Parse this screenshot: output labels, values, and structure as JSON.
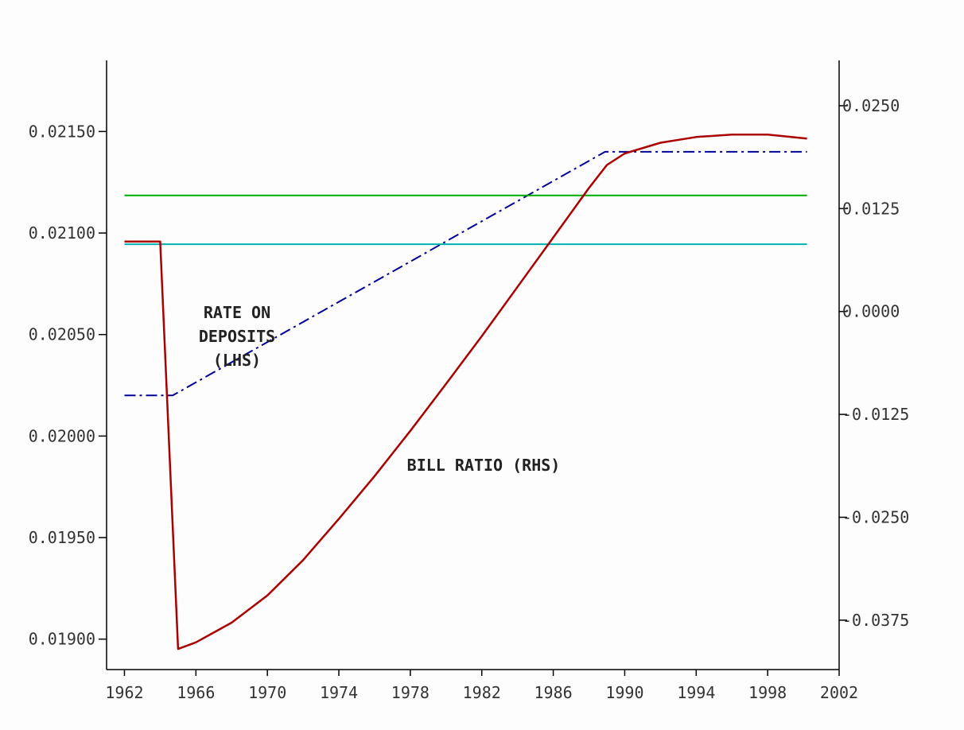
{
  "chart_data": {
    "type": "line",
    "title": "",
    "xlabel": "",
    "ylabel_left": "",
    "ylabel_right": "",
    "xlim": [
      1961,
      2002
    ],
    "x_ticks": [
      "1962",
      "1966",
      "1970",
      "1974",
      "1978",
      "1982",
      "1986",
      "1990",
      "1994",
      "1998",
      "2002"
    ],
    "ylim_left": [
      0.01885,
      0.02185
    ],
    "y_ticks_left": [
      "0.01900",
      "0.01950",
      "0.02000",
      "0.02050",
      "0.02100",
      "0.02150"
    ],
    "ylim_right": [
      -0.0435,
      0.0305
    ],
    "y_ticks_right": [
      "0.0250",
      "0.0125",
      "0.0000",
      "-0.0125",
      "-0.0250",
      "-0.0375"
    ],
    "annotations": [
      {
        "lines": [
          "RATE ON",
          "DEPOSITS",
          "(LHS)"
        ]
      },
      {
        "lines": [
          "BILL RATIO (RHS)"
        ]
      }
    ],
    "series": [
      {
        "axis": "left",
        "color": "#000099",
        "style": "dashdot",
        "points": [
          [
            1962.0,
            0.0202
          ],
          [
            1964.7,
            0.0202
          ],
          [
            1988.9,
            0.0214
          ],
          [
            2000.2,
            0.0214
          ]
        ]
      },
      {
        "axis": "left",
        "color": "#00aa00",
        "style": "solid",
        "points": [
          [
            1962.0,
            0.021185
          ],
          [
            2000.2,
            0.021185
          ]
        ]
      },
      {
        "axis": "left",
        "color": "#00b0b0",
        "style": "solid",
        "points": [
          [
            1962.0,
            0.020945
          ],
          [
            2000.2,
            0.020945
          ]
        ]
      },
      {
        "axis": "right",
        "color": "#aa0000",
        "style": "solid",
        "points": [
          [
            1962.0,
            0.0085
          ],
          [
            1964.0,
            0.0085
          ],
          [
            1965.0,
            -0.041
          ],
          [
            1966.0,
            -0.0402
          ],
          [
            1968.0,
            -0.0378
          ],
          [
            1970.0,
            -0.0345
          ],
          [
            1972.0,
            -0.0302
          ],
          [
            1974.0,
            -0.0252
          ],
          [
            1976.0,
            -0.02
          ],
          [
            1978.0,
            -0.0145
          ],
          [
            1980.0,
            -0.0088
          ],
          [
            1982.0,
            -0.003
          ],
          [
            1984.0,
            0.003
          ],
          [
            1986.0,
            0.009
          ],
          [
            1988.0,
            0.015
          ],
          [
            1989.0,
            0.0178
          ],
          [
            1990.0,
            0.0192
          ],
          [
            1992.0,
            0.0205
          ],
          [
            1994.0,
            0.0212
          ],
          [
            1996.0,
            0.0215
          ],
          [
            1998.0,
            0.0215
          ],
          [
            2000.2,
            0.021
          ]
        ]
      }
    ]
  }
}
